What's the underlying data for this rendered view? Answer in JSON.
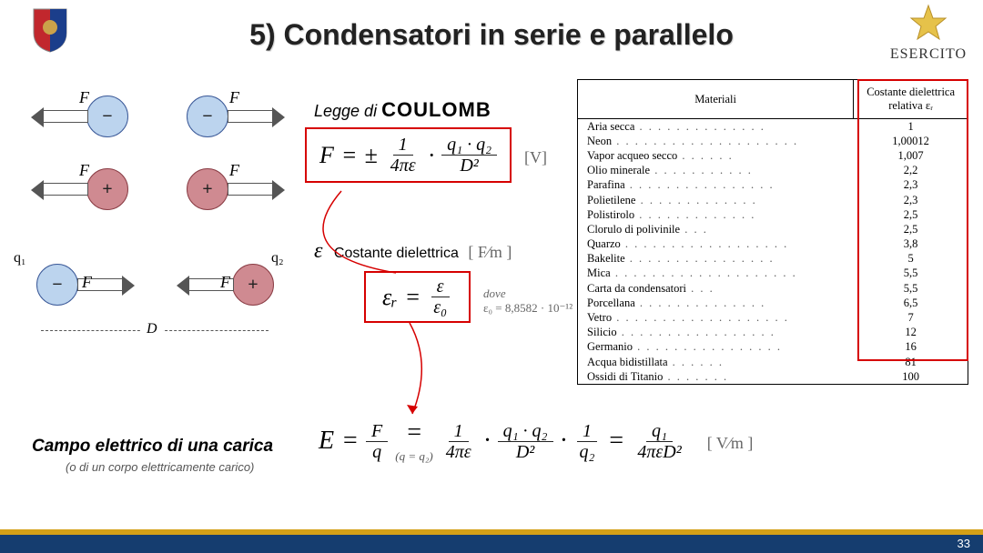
{
  "page": {
    "title_prefix": "5) ",
    "title_main": "Condensatori in serie e parallelo",
    "brand": "ESERCITO",
    "page_number": "33"
  },
  "coulomb": {
    "label_prefix": "Legge di ",
    "label_bold": "COULOMB",
    "lhs": "F",
    "op": "=",
    "pm": "±",
    "frac1_num": "1",
    "frac1_den": "4πε",
    "dot": "·",
    "frac2_num": "q₁ · q₂",
    "frac2_den": "D²",
    "unit": "[V]"
  },
  "eps": {
    "symbol": "ε",
    "label": "Costante dielettrica",
    "unit_html": "[ F⁄m ]",
    "rel_lhs": "εᵣ",
    "op": "=",
    "num": "ε",
    "den": "ε₀",
    "dove": "dove",
    "e0": "ε₀ = 8,8582 · 10⁻¹²"
  },
  "diagram": {
    "F": "F",
    "q1": "q₁",
    "q2": "q₂",
    "D": "D"
  },
  "bottom": {
    "heading": "Campo elettrico di una carica",
    "sub": "(o di un corpo elettricamente carico)",
    "E": "E",
    "eq": "=",
    "Fq_num": "F",
    "Fq_den": "q",
    "qeq": "(q = q₂)",
    "frac1_num": "1",
    "frac1_den": "4πε",
    "dot": "·",
    "frac2_num": "q₁ · q₂",
    "frac2_den": "D²",
    "frac3_num": "1",
    "frac3_den": "q₂",
    "final_num": "q₁",
    "final_den": "4πεD²",
    "unit": "[ V⁄m ]"
  },
  "table": {
    "h1": "Materiali",
    "h2": "Costante dielettrica relativa εᵣ",
    "rows": [
      [
        "Aria secca",
        "1"
      ],
      [
        "Neon",
        "1,00012"
      ],
      [
        "Vapor acqueo secco",
        "1,007"
      ],
      [
        "Olio minerale",
        "2,2"
      ],
      [
        "Parafina",
        "2,3"
      ],
      [
        "Polietilene",
        "2,3"
      ],
      [
        "Polistirolo",
        "2,5"
      ],
      [
        "Clorulo di polivinile",
        "2,5"
      ],
      [
        "Quarzo",
        "3,8"
      ],
      [
        "Bakelite",
        "5"
      ],
      [
        "Mica",
        "5,5"
      ],
      [
        "Carta da condensatori",
        "5,5"
      ],
      [
        "Porcellana",
        "6,5"
      ],
      [
        "Vetro",
        "7"
      ],
      [
        "Silicio",
        "12"
      ],
      [
        "Germanio",
        "16"
      ],
      [
        "Acqua bidistillata",
        "81"
      ],
      [
        "Ossidi di Titanio",
        "100"
      ]
    ]
  },
  "colors": {
    "red": "#d60000",
    "blue": "#153d6f",
    "gold": "#d4a017"
  }
}
